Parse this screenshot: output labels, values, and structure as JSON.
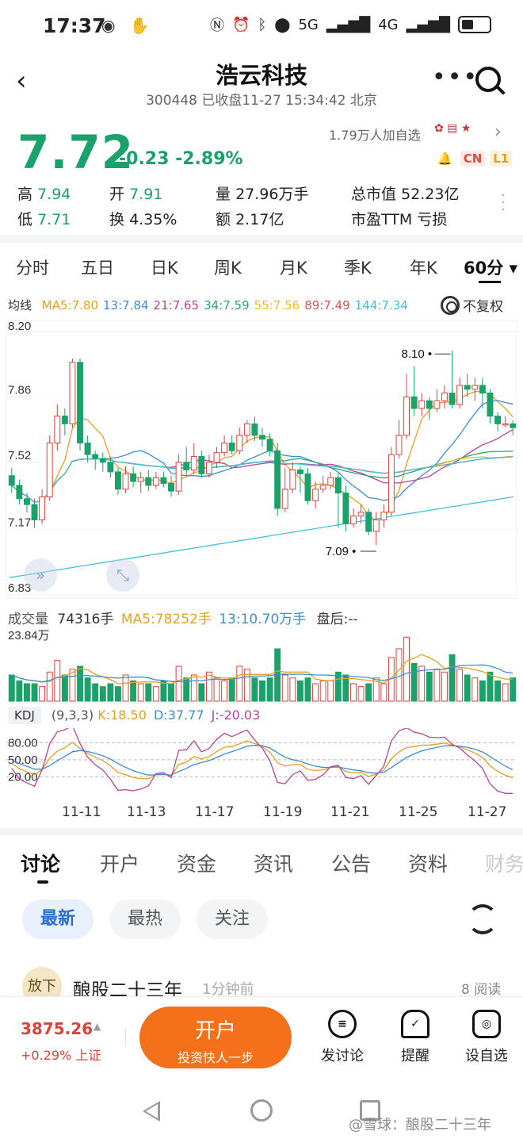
{
  "status": {
    "time": "17:37",
    "net": "5G",
    "net2": "4G"
  },
  "header": {
    "title": "浩云科技",
    "subtitle": "300448 已收盘11-27 15:34:42 北京"
  },
  "quote": {
    "price": "7.72",
    "change": "-0.23",
    "change_pct": "-2.89%",
    "followers": "1.79万人加自选",
    "badge_cn": "CN",
    "badge_l1": "L1",
    "stats": [
      {
        "label": "高",
        "value": "7.94"
      },
      {
        "label": "开",
        "value": "7.91"
      },
      {
        "label": "量",
        "value": "27.96万手"
      },
      {
        "label": "总市值",
        "value": "52.23亿"
      },
      {
        "label": "低",
        "value": "7.71"
      },
      {
        "label": "换",
        "value": "4.35%"
      },
      {
        "label": "额",
        "value": "2.17亿"
      },
      {
        "label": "市盈TTM",
        "value": "亏损"
      }
    ]
  },
  "tabs": [
    {
      "label": "分时"
    },
    {
      "label": "五日"
    },
    {
      "label": "日K"
    },
    {
      "label": "周K"
    },
    {
      "label": "月K"
    },
    {
      "label": "季K"
    },
    {
      "label": "年K"
    },
    {
      "label": "60分 ▾"
    }
  ],
  "ma_legend": {
    "title": "均线",
    "items": [
      {
        "label": "MA5:7.80",
        "color": "#e8a020"
      },
      {
        "label": "13:7.84",
        "color": "#3b8fd0"
      },
      {
        "label": "21:7.65",
        "color": "#b8449a"
      },
      {
        "label": "34:7.59",
        "color": "#2aa870"
      },
      {
        "label": "55:7.56",
        "color": "#e8c020"
      },
      {
        "label": "89:7.49",
        "color": "#e05050"
      },
      {
        "label": "144:7.34",
        "color": "#40c0e0"
      }
    ],
    "fuquan": "不复权"
  },
  "chart_data": {
    "type": "candlestick",
    "y_ticks": [
      "8.20",
      "7.86",
      "7.52",
      "7.17",
      "6.83"
    ],
    "ylim": [
      6.83,
      8.2
    ],
    "annotations": {
      "high": "8.10",
      "low": "7.09"
    },
    "x_labels": [
      "11-11",
      "11-13",
      "11-17",
      "11-19",
      "11-21",
      "11-25",
      "11-27"
    ],
    "candles": [
      [
        7.45,
        7.4,
        7.49,
        7.36
      ],
      [
        7.4,
        7.33,
        7.43,
        7.3
      ],
      [
        7.33,
        7.3,
        7.36,
        7.26
      ],
      [
        7.3,
        7.22,
        7.33,
        7.18
      ],
      [
        7.22,
        7.34,
        7.38,
        7.2
      ],
      [
        7.34,
        7.62,
        7.66,
        7.32
      ],
      [
        7.62,
        7.76,
        7.82,
        7.58
      ],
      [
        7.76,
        7.72,
        7.8,
        7.66
      ],
      [
        7.72,
        8.04,
        8.06,
        7.7
      ],
      [
        8.04,
        7.62,
        8.06,
        7.58
      ],
      [
        7.62,
        7.56,
        7.66,
        7.52
      ],
      [
        7.56,
        7.54,
        7.58,
        7.48
      ],
      [
        7.54,
        7.52,
        7.57,
        7.47
      ],
      [
        7.52,
        7.47,
        7.55,
        7.44
      ],
      [
        7.47,
        7.38,
        7.49,
        7.35
      ],
      [
        7.38,
        7.46,
        7.5,
        7.36
      ],
      [
        7.46,
        7.42,
        7.5,
        7.39
      ],
      [
        7.42,
        7.44,
        7.47,
        7.36
      ],
      [
        7.44,
        7.4,
        7.48,
        7.37
      ],
      [
        7.4,
        7.44,
        7.47,
        7.38
      ],
      [
        7.44,
        7.41,
        7.47,
        7.39
      ],
      [
        7.41,
        7.37,
        7.45,
        7.34
      ],
      [
        7.37,
        7.52,
        7.56,
        7.35
      ],
      [
        7.52,
        7.48,
        7.6,
        7.45
      ],
      [
        7.48,
        7.55,
        7.62,
        7.46
      ],
      [
        7.55,
        7.46,
        7.58,
        7.44
      ],
      [
        7.46,
        7.52,
        7.56,
        7.44
      ],
      [
        7.52,
        7.57,
        7.6,
        7.49
      ],
      [
        7.57,
        7.62,
        7.66,
        7.55
      ],
      [
        7.62,
        7.58,
        7.66,
        7.56
      ],
      [
        7.58,
        7.66,
        7.7,
        7.56
      ],
      [
        7.66,
        7.72,
        7.74,
        7.62
      ],
      [
        7.72,
        7.66,
        7.76,
        7.63
      ],
      [
        7.66,
        7.64,
        7.7,
        7.6
      ],
      [
        7.64,
        7.58,
        7.67,
        7.55
      ],
      [
        7.58,
        7.28,
        7.62,
        7.24
      ],
      [
        7.28,
        7.38,
        7.49,
        7.26
      ],
      [
        7.38,
        7.48,
        7.52,
        7.36
      ],
      [
        7.48,
        7.46,
        7.5,
        7.36
      ],
      [
        7.46,
        7.32,
        7.49,
        7.3
      ],
      [
        7.32,
        7.38,
        7.42,
        7.28
      ],
      [
        7.38,
        7.4,
        7.45,
        7.36
      ],
      [
        7.4,
        7.44,
        7.47,
        7.38
      ],
      [
        7.44,
        7.36,
        7.47,
        7.18
      ],
      [
        7.36,
        7.2,
        7.4,
        7.16
      ],
      [
        7.2,
        7.24,
        7.28,
        7.18
      ],
      [
        7.24,
        7.26,
        7.3,
        7.2
      ],
      [
        7.26,
        7.16,
        7.28,
        7.14
      ],
      [
        7.16,
        7.22,
        7.26,
        7.09
      ],
      [
        7.22,
        7.26,
        7.3,
        7.18
      ],
      [
        7.26,
        7.56,
        7.6,
        7.24
      ],
      [
        7.56,
        7.66,
        7.74,
        7.54
      ],
      [
        7.66,
        7.86,
        7.98,
        7.64
      ],
      [
        7.86,
        7.8,
        8.02,
        7.76
      ],
      [
        7.8,
        7.84,
        7.88,
        7.76
      ],
      [
        7.84,
        7.8,
        7.86,
        7.74
      ],
      [
        7.8,
        7.84,
        7.9,
        7.78
      ],
      [
        7.84,
        7.88,
        7.92,
        7.8
      ],
      [
        7.88,
        7.82,
        8.1,
        7.8
      ],
      [
        7.82,
        7.92,
        7.96,
        7.8
      ],
      [
        7.92,
        7.9,
        7.98,
        7.86
      ],
      [
        7.9,
        7.92,
        7.96,
        7.84
      ],
      [
        7.92,
        7.88,
        7.96,
        7.8
      ],
      [
        7.88,
        7.76,
        7.9,
        7.72
      ],
      [
        7.76,
        7.72,
        7.78,
        7.68
      ],
      [
        7.72,
        7.72,
        7.76,
        7.7
      ],
      [
        7.72,
        7.7,
        7.74,
        7.66
      ]
    ]
  },
  "volume": {
    "label": "成交量",
    "current": "74316手",
    "ma5": "MA5:78252手",
    "ma13": "13:10.70万手",
    "after": "盘后:--",
    "ymax": "23.84万",
    "bars": [
      9,
      7,
      6,
      6,
      5,
      10,
      14,
      9,
      11,
      12,
      8,
      6,
      5,
      6,
      5,
      9,
      7,
      6,
      6,
      5,
      7,
      6,
      12,
      8,
      9,
      6,
      10,
      8,
      7,
      8,
      12,
      11,
      8,
      7,
      8,
      18,
      9,
      8,
      7,
      8,
      6,
      7,
      7,
      10,
      9,
      6,
      5,
      6,
      8,
      6,
      15,
      18,
      22,
      13,
      12,
      10,
      11,
      10,
      16,
      11,
      9,
      8,
      7,
      10,
      7,
      6,
      8
    ]
  },
  "kdj": {
    "tag": "KDJ",
    "params": "(9,3,3)",
    "k": "K:18.50",
    "d": "D:37.77",
    "j": "J:-20.03",
    "levels": [
      "80.00",
      "50.00",
      "20.00"
    ]
  },
  "bottom_tabs": [
    {
      "label": "讨论"
    },
    {
      "label": "开户"
    },
    {
      "label": "资金"
    },
    {
      "label": "资讯"
    },
    {
      "label": "公告"
    },
    {
      "label": "资料"
    },
    {
      "label": "财务"
    }
  ],
  "filters": [
    {
      "label": "最新"
    },
    {
      "label": "最热"
    },
    {
      "label": "关注"
    }
  ],
  "post": {
    "avatar_text": "放下",
    "author": "酿股二十三年",
    "time": "1分钟前",
    "reads": "8 阅读"
  },
  "bottom_bar": {
    "index_value": "3875.26",
    "index_change": "+0.29% 上证",
    "open_title": "开户",
    "open_sub": "投资快人一步",
    "discuss": "发讨论",
    "remind": "提醒",
    "watch": "设自选"
  },
  "watermark": "@雪球：酿股二十三年"
}
